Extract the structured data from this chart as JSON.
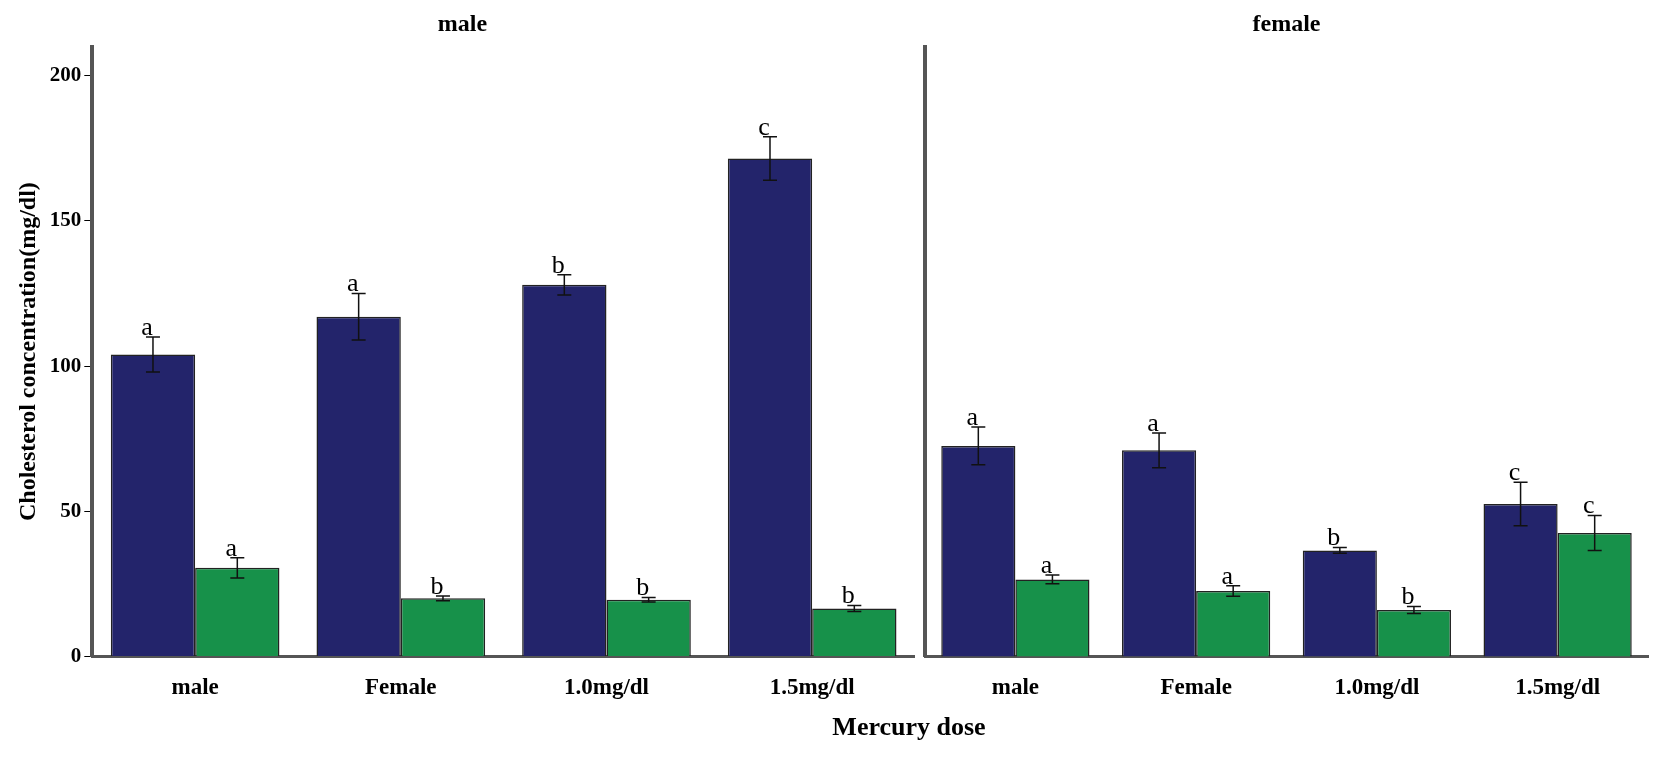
{
  "chart_data": [
    {
      "type": "bar",
      "title": "male",
      "ylabel": "Cholesterol concentration(mg/dl)",
      "xlabel": "Mercury dose",
      "categories": [
        "male",
        "Female",
        "1.0mg/dl",
        "1.5mg/dl"
      ],
      "ylim": [
        0,
        210
      ],
      "yticks": [
        0,
        50,
        100,
        150,
        200
      ],
      "grid": false,
      "legend": false,
      "series": [
        {
          "color": "#23246b",
          "values": [
            104,
            117,
            128,
            171.5
          ],
          "errors": [
            6,
            8,
            3.5,
            7.5
          ]
        },
        {
          "color": "#17914a",
          "values": [
            30.5,
            20,
            19.5,
            16.5
          ],
          "errors": [
            3.5,
            0.8,
            0.8,
            1
          ]
        }
      ],
      "annotations": [
        {
          "text": "a",
          "x": "male",
          "y": 104
        },
        {
          "text": "a",
          "x": "male",
          "y": 30.5
        },
        {
          "text": "a",
          "x": "Female",
          "y": 117
        },
        {
          "text": "b",
          "x": "Female",
          "y": 20
        },
        {
          "text": "b",
          "x": "1.0mg/dl",
          "y": 128
        },
        {
          "text": "b",
          "x": "1.0mg/dl",
          "y": 19.5
        },
        {
          "text": "c",
          "x": "1.5mg/dl",
          "y": 171.5
        },
        {
          "text": "b",
          "x": "1.5mg/dl",
          "y": 16.5
        }
      ]
    },
    {
      "type": "bar",
      "title": "female",
      "categories": [
        "male",
        "Female",
        "1.0mg/dl",
        "1.5mg/dl"
      ],
      "ylim": [
        0,
        210
      ],
      "tick_labels": "x",
      "grid": false,
      "legend": false,
      "series": [
        {
          "color": "#23246b",
          "values": [
            72.5,
            71,
            36.5,
            52.5
          ],
          "errors": [
            6.5,
            6,
            1,
            7.5
          ]
        },
        {
          "color": "#17914a",
          "values": [
            26.5,
            22.5,
            16,
            42.5
          ],
          "errors": [
            1.5,
            1.8,
            1.2,
            6
          ]
        }
      ],
      "annotations": [
        {
          "text": "a",
          "x": "male",
          "y": 72.5
        },
        {
          "text": "a",
          "x": "male",
          "y": 26.5
        },
        {
          "text": "a",
          "x": "Female",
          "y": 71
        },
        {
          "text": "a",
          "x": "Female",
          "y": 22.5
        },
        {
          "text": "b",
          "x": "1.0mg/dl",
          "y": 36.5
        },
        {
          "text": "b",
          "x": "1.0mg/dl",
          "y": 16
        },
        {
          "text": "c",
          "x": "1.5mg/dl",
          "y": 52.5
        },
        {
          "text": "c",
          "x": "1.5mg/dl",
          "y": 42.5
        }
      ]
    }
  ]
}
